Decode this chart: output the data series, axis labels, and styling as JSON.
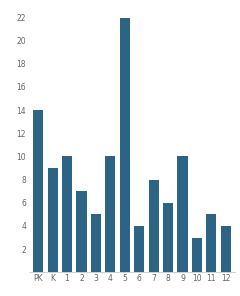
{
  "categories": [
    "PK",
    "K",
    "1",
    "2",
    "3",
    "4",
    "5",
    "6",
    "7",
    "8",
    "9",
    "10",
    "11",
    "12"
  ],
  "values": [
    14,
    9,
    10,
    7,
    5,
    10,
    22,
    4,
    8,
    6,
    10,
    3,
    5,
    4
  ],
  "bar_color": "#2d6384",
  "ylim": [
    0,
    23
  ],
  "yticks": [
    2,
    4,
    6,
    8,
    10,
    12,
    14,
    16,
    18,
    20,
    22
  ],
  "background_color": "#ffffff",
  "tick_fontsize": 5.5,
  "bar_width": 0.7
}
